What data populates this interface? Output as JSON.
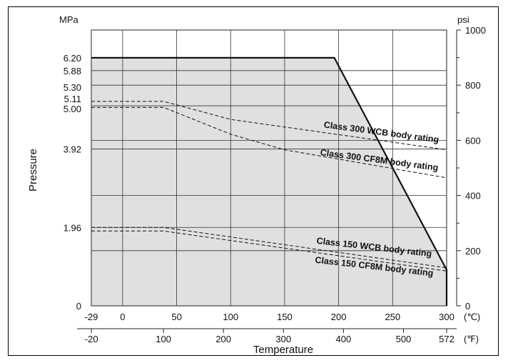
{
  "chart_data": {
    "type": "line",
    "xlabel": "Temperature",
    "ylabel": "Pressure",
    "y_unit_left": "MPa",
    "y_unit_right": "psi",
    "x_unit_c": "(℃)",
    "x_unit_f": "(℉)",
    "x_ticks_c": [
      "-29",
      "0",
      "50",
      "100",
      "150",
      "200",
      "250",
      "300"
    ],
    "x_ticks_f": [
      "-20",
      "100",
      "200",
      "300",
      "400",
      "500",
      "572"
    ],
    "y_ticks_mpa": [
      "0",
      "1.96",
      "3.92",
      "5.00",
      "5.11",
      "5.30",
      "5.88",
      "6.20"
    ],
    "y_ticks_psi": [
      "0",
      "200",
      "400",
      "600",
      "800",
      "1000"
    ],
    "xlim_c": [
      -29,
      300
    ],
    "ylim_mpa": [
      0,
      6.9
    ],
    "grid": true,
    "area": {
      "name": "",
      "x": [
        -29,
        196,
        300,
        300
      ],
      "y": [
        6.2,
        6.2,
        0.9,
        0
      ]
    },
    "series": [
      {
        "name": "Class 300 WCB body rating",
        "style": "dashed",
        "x": [
          -29,
          38,
          100,
          300
        ],
        "y": [
          5.11,
          5.11,
          4.66,
          3.9
        ]
      },
      {
        "name": "Class 300 CF8M body rating",
        "style": "dashed",
        "x": [
          -29,
          38,
          100,
          150,
          300
        ],
        "y": [
          4.96,
          4.96,
          4.29,
          3.9,
          3.2
        ]
      },
      {
        "name": "Class 150 WCB body rating",
        "style": "dashed",
        "x": [
          -29,
          38,
          300
        ],
        "y": [
          1.96,
          1.96,
          0.95
        ]
      },
      {
        "name": "Class 150 CF8M body rating",
        "style": "dashed",
        "x": [
          -29,
          38,
          300
        ],
        "y": [
          1.87,
          1.87,
          0.87
        ]
      }
    ],
    "colors": {
      "area": "#e0e0e0",
      "line": "#111111"
    }
  }
}
